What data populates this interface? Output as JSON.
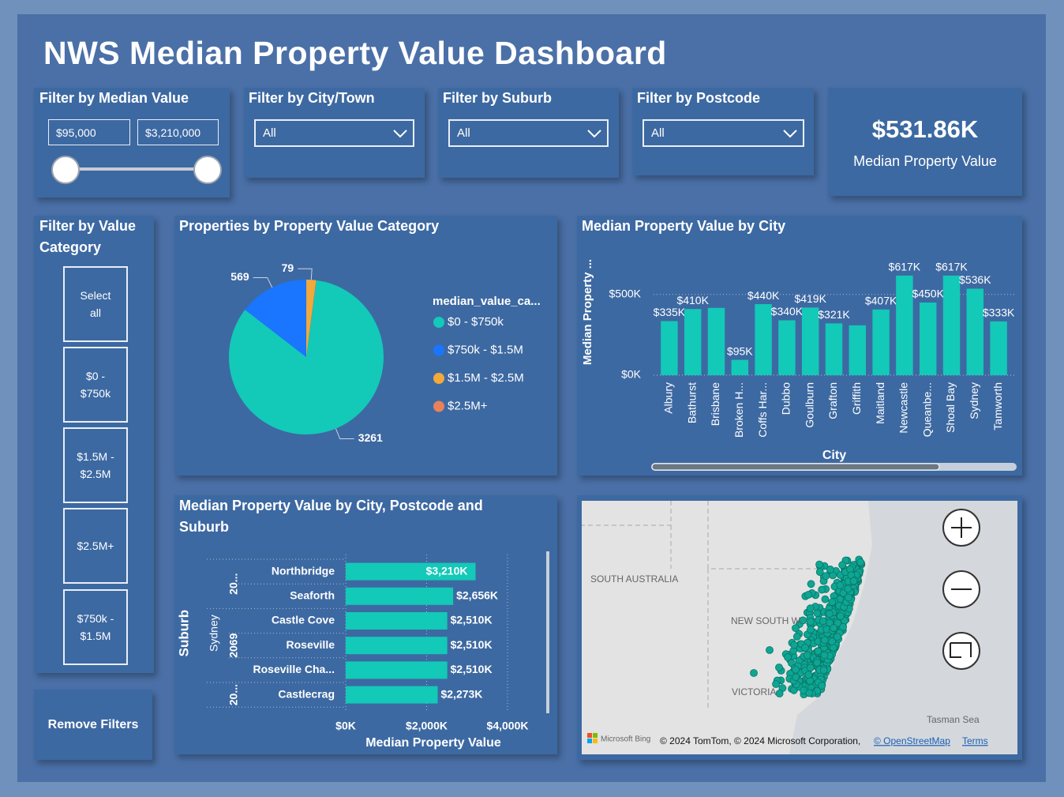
{
  "header": {
    "title": "NWS Median Property Value Dashboard"
  },
  "filters": {
    "median_value": {
      "label": "Filter by Median Value",
      "min": "$95,000",
      "max": "$3,210,000"
    },
    "city": {
      "label": "Filter by City/Town",
      "selected": "All"
    },
    "suburb": {
      "label": "Filter by Suburb",
      "selected": "All"
    },
    "postcode": {
      "label": "Filter by Postcode",
      "selected": "All"
    },
    "value_category": {
      "label": "Filter by Value Category",
      "options": [
        "Select all",
        "$0 - $750k",
        "$1.5M - $2.5M",
        "$2.5M+",
        "$750k - $1.5M"
      ]
    },
    "remove_button": "Remove Filters"
  },
  "kpi": {
    "value": "$531.86K",
    "label": "Median Property Value"
  },
  "chart_data": [
    {
      "type": "pie",
      "title": "Properties by Property Value Category",
      "legend_title": "median_value_ca...",
      "categories": [
        "$0 - $750k",
        "$750k - $1.5M",
        "$1.5M - $2.5M",
        "$2.5M+"
      ],
      "values": [
        3261,
        569,
        79,
        2
      ],
      "colors": [
        "#13c9b8",
        "#1a75ff",
        "#f2a93b",
        "#e8825a"
      ]
    },
    {
      "type": "bar",
      "orientation": "vertical",
      "title": "Median Property Value by City",
      "x_label": "City",
      "y_label": "Median Property ...",
      "categories": [
        "Albury",
        "Bathurst",
        "Brisbane",
        "Broken H...",
        "Coffs Har...",
        "Dubbo",
        "Goulburn",
        "Grafton",
        "Griffith",
        "Maitland",
        "Newcastle",
        "Queanbe...",
        "Shoal Bay",
        "Sydney",
        "Tamworth"
      ],
      "values": [
        335,
        410,
        417,
        95,
        440,
        340,
        419,
        321,
        309,
        407,
        617,
        450,
        617,
        536,
        333
      ],
      "value_labels": [
        "$335K",
        "$410K",
        null,
        "$95K",
        "$440K",
        "$340K",
        "$419K",
        "$321K",
        null,
        "$407K",
        "$617K",
        "$450K",
        "$617K",
        "$536K",
        "$333K"
      ],
      "color": "#13c9b8",
      "ylim": [
        0,
        680
      ],
      "yticks": [
        {
          "value": 0,
          "label": "$0K"
        },
        {
          "value": 500,
          "label": "$500K"
        }
      ],
      "grid": true
    },
    {
      "type": "bar",
      "orientation": "horizontal",
      "title": "Median Property Value by City, Postcode and Suburb",
      "x_label": "Median Property Value",
      "y_label": "Suburb",
      "city": "Sydney",
      "groups": [
        {
          "postcode": "20...",
          "categories": [
            "Northbridge",
            "Seaforth"
          ],
          "values": [
            3210,
            2656
          ],
          "value_labels": [
            "$3,210K",
            "$2,656K"
          ]
        },
        {
          "postcode": "2069",
          "categories": [
            "Castle Cove",
            "Roseville",
            "Roseville Cha..."
          ],
          "values": [
            2510,
            2510,
            2510
          ],
          "value_labels": [
            "$2,510K",
            "$2,510K",
            "$2,510K"
          ]
        },
        {
          "postcode": "20...",
          "categories": [
            "Castlecrag"
          ],
          "values": [
            2273
          ],
          "value_labels": [
            "$2,273K"
          ]
        }
      ],
      "color": "#13c9b8",
      "xlim": [
        0,
        4000
      ],
      "xticks": [
        {
          "value": 0,
          "label": "$0K"
        },
        {
          "value": 2000,
          "label": "$2,000K"
        },
        {
          "value": 4000,
          "label": "$4,000K"
        }
      ],
      "grid": true
    }
  ],
  "map": {
    "labels": [
      "SOUTH AUSTRALIA",
      "NEW SOUTH W...",
      "VICTORIA",
      "Tasman Sea"
    ],
    "attribution": {
      "provider": "Microsoft Bing",
      "copyright": "© 2024 TomTom, © 2024 Microsoft Corporation,",
      "osm": "© OpenStreetMap",
      "terms": "Terms"
    }
  }
}
